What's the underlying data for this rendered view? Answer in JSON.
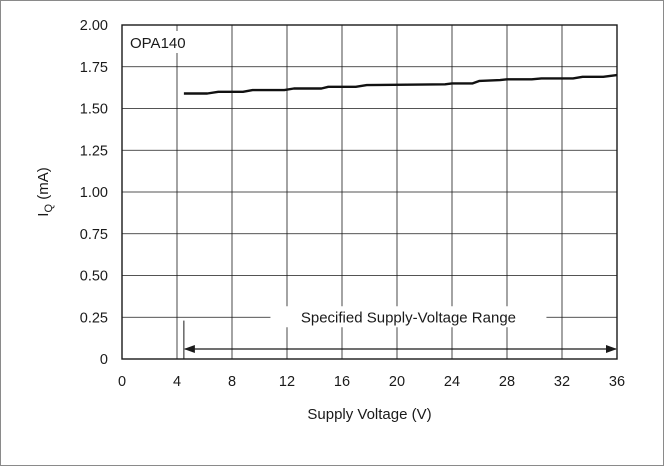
{
  "chart_data": {
    "type": "line",
    "annotation_device": "OPA140",
    "range_label": "Specified Supply-Voltage Range",
    "xlabel": "Supply Voltage (V)",
    "ylabel_main": "I",
    "ylabel_sub": "Q",
    "ylabel_unit": " (mA)",
    "xlim": [
      0,
      36
    ],
    "ylim": [
      0,
      2.0
    ],
    "x_ticks": [
      0,
      4,
      8,
      12,
      16,
      20,
      24,
      28,
      32,
      36
    ],
    "x_tick_labels": [
      "0",
      "4",
      "8",
      "12",
      "16",
      "20",
      "24",
      "28",
      "32",
      "36"
    ],
    "y_ticks": [
      0,
      0.25,
      0.5,
      0.75,
      1.0,
      1.25,
      1.5,
      1.75,
      2.0
    ],
    "y_tick_labels": [
      "0",
      "0.25",
      "0.50",
      "0.75",
      "1.00",
      "1.25",
      "1.50",
      "1.75",
      "2.00"
    ],
    "grid": true,
    "range_start": 4.5,
    "range_end": 36,
    "series": [
      {
        "color": "#111111",
        "x": [
          4.5,
          6.2,
          7.0,
          8.8,
          9.5,
          11.8,
          12.5,
          14.5,
          15.0,
          17.0,
          17.8,
          23.5,
          24.0,
          25.5,
          26.0,
          27.5,
          28.0,
          29.8,
          30.5,
          32.8,
          33.5,
          35.0,
          35.5,
          36.0
        ],
        "y": [
          1.59,
          1.59,
          1.6,
          1.6,
          1.61,
          1.61,
          1.62,
          1.62,
          1.63,
          1.63,
          1.64,
          1.645,
          1.65,
          1.65,
          1.665,
          1.67,
          1.675,
          1.675,
          1.68,
          1.68,
          1.69,
          1.69,
          1.695,
          1.7
        ]
      }
    ]
  }
}
